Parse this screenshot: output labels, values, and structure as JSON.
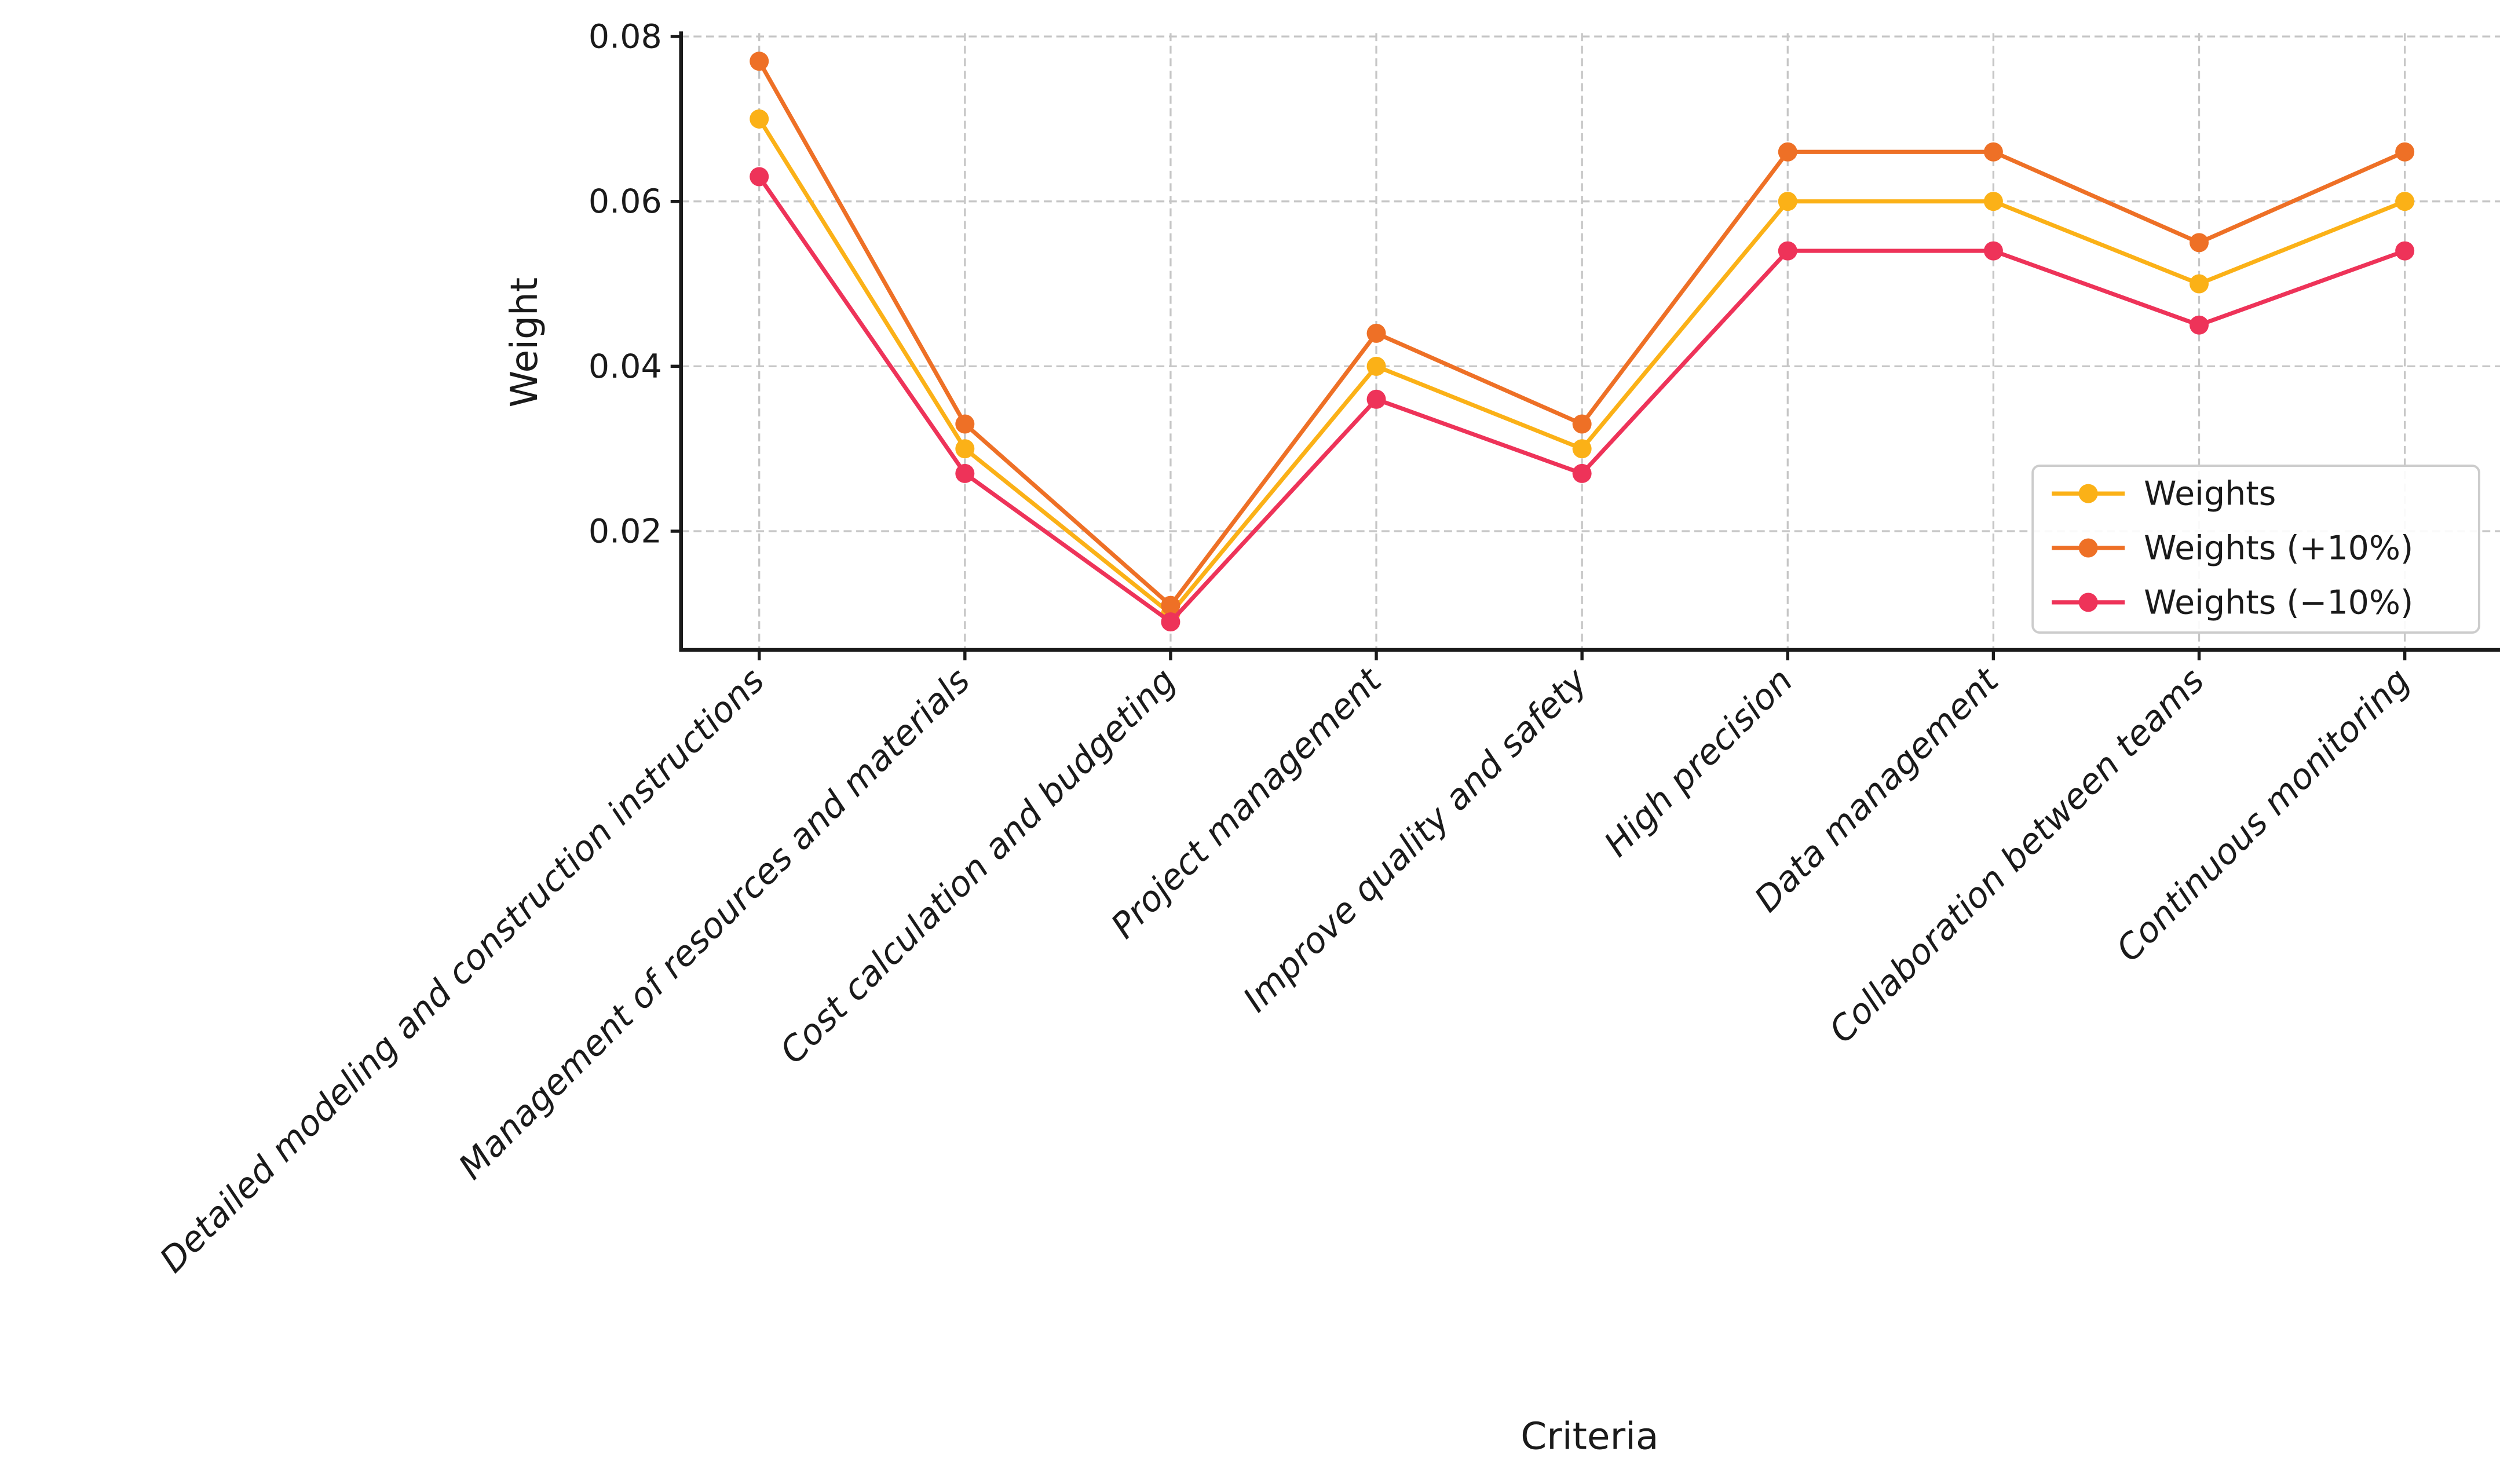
{
  "chart_data": {
    "type": "line",
    "title": "",
    "xlabel": "Criteria",
    "ylabel": "Weight",
    "categories": [
      "Detailed modeling and construction instructions",
      "Management of resources and materials",
      "Cost calculation and budgeting",
      "Project management",
      "Improve quality and safety",
      "High precision",
      "Data management",
      "Collaboration between teams",
      "Continuous monitoring"
    ],
    "series": [
      {
        "name": "Weights",
        "color": "#FBB117",
        "values": [
          0.07,
          0.03,
          0.01,
          0.04,
          0.03,
          0.06,
          0.06,
          0.05,
          0.06
        ]
      },
      {
        "name": "Weights (+10%)",
        "color": "#EE7026",
        "values": [
          0.077,
          0.033,
          0.011,
          0.044,
          0.033,
          0.066,
          0.066,
          0.055,
          0.066
        ]
      },
      {
        "name": "Weights (−10%)",
        "color": "#EE3359",
        "values": [
          0.063,
          0.027,
          0.009,
          0.036,
          0.027,
          0.054,
          0.054,
          0.045,
          0.054
        ]
      }
    ],
    "yticks": [
      "0.02",
      "0.04",
      "0.06",
      "0.08"
    ],
    "ytick_values": [
      0.02,
      0.04,
      0.06,
      0.08
    ],
    "ylim": [
      0.0056,
      0.0804
    ],
    "grid": "dashed",
    "legend_position": "lower right",
    "marker": "circle",
    "colors": {
      "axis_text": "#1a1a1a",
      "spine": "#1a1a1a",
      "grid": "#c6c6c6",
      "legend_border": "#cccccc",
      "background": "#ffffff"
    }
  }
}
